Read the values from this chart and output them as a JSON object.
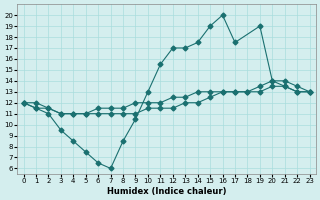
{
  "xlabel": "Humidex (Indice chaleur)",
  "ylabel": "",
  "background_color": "#d4eeee",
  "grid_color": "#aadddd",
  "line_color": "#1a7070",
  "x_values": [
    0,
    1,
    2,
    3,
    4,
    5,
    6,
    7,
    8,
    9,
    10,
    11,
    12,
    13,
    14,
    15,
    16,
    17,
    18,
    19,
    20,
    21,
    22,
    23
  ],
  "y_max": [
    12,
    11.5,
    11,
    9.5,
    8.5,
    7.5,
    6.5,
    6,
    8.5,
    10.5,
    13,
    15.5,
    17,
    17,
    17.5,
    19,
    20,
    17.5,
    null,
    19,
    14,
    14,
    13.5,
    13
  ],
  "y_mean": [
    12,
    12,
    11.5,
    11,
    11,
    11,
    11.5,
    11.5,
    11.5,
    12,
    12,
    12,
    12.5,
    12.5,
    13,
    13,
    13,
    13,
    13,
    13.5,
    14,
    13.5,
    13,
    13
  ],
  "y_min": [
    12,
    11.5,
    11.5,
    11,
    11,
    11,
    11,
    11,
    11,
    11,
    11.5,
    11.5,
    11.5,
    12,
    12,
    12.5,
    13,
    13,
    13,
    13,
    13.5,
    13.5,
    13,
    13
  ],
  "xlim": [
    -0.5,
    23.5
  ],
  "ylim": [
    5.5,
    21
  ],
  "yticks": [
    6,
    7,
    8,
    9,
    10,
    11,
    12,
    13,
    14,
    15,
    16,
    17,
    18,
    19,
    20
  ],
  "xticks": [
    0,
    1,
    2,
    3,
    4,
    5,
    6,
    7,
    8,
    9,
    10,
    11,
    12,
    13,
    14,
    15,
    16,
    17,
    18,
    19,
    20,
    21,
    22,
    23
  ]
}
